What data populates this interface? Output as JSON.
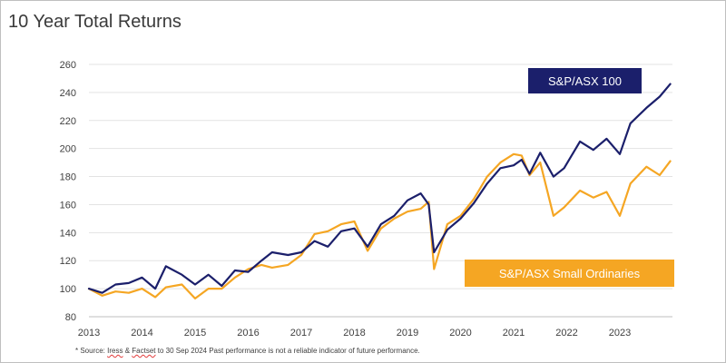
{
  "chart_data": {
    "type": "line",
    "title": "10 Year Total Returns",
    "xlabel": "",
    "ylabel": "",
    "x_ticks": [
      "2013",
      "2014",
      "2015",
      "2016",
      "2017",
      "2018",
      "2019",
      "2020",
      "2021",
      "2022",
      "2023"
    ],
    "y_ticks": [
      80,
      100,
      120,
      140,
      160,
      180,
      200,
      220,
      240,
      260
    ],
    "ylim": [
      80,
      260
    ],
    "xlim": [
      2013.0,
      2023.95
    ],
    "grid": "horizontal",
    "series": [
      {
        "name": "S&P/ASX 100",
        "color": "#1b1f6b",
        "x": [
          2013.0,
          2013.25,
          2013.5,
          2013.75,
          2014.0,
          2014.25,
          2014.45,
          2014.75,
          2015.0,
          2015.25,
          2015.5,
          2015.75,
          2016.0,
          2016.25,
          2016.45,
          2016.75,
          2017.0,
          2017.25,
          2017.5,
          2017.75,
          2018.0,
          2018.25,
          2018.5,
          2018.75,
          2019.0,
          2019.25,
          2019.4,
          2019.5,
          2019.75,
          2020.0,
          2020.25,
          2020.5,
          2020.75,
          2021.0,
          2021.15,
          2021.3,
          2021.5,
          2021.75,
          2021.95,
          2022.25,
          2022.5,
          2022.75,
          2023.0,
          2023.2,
          2023.5,
          2023.75,
          2023.95
        ],
        "values": [
          100,
          97,
          103,
          104,
          108,
          100,
          116,
          110,
          103,
          110,
          102,
          113,
          112,
          120,
          126,
          124,
          126,
          134,
          130,
          141,
          143,
          130,
          146,
          152,
          163,
          168,
          160,
          126,
          142,
          150,
          161,
          175,
          186,
          188,
          192,
          182,
          197,
          180,
          186,
          205,
          199,
          207,
          196,
          218,
          229,
          237,
          246
        ]
      },
      {
        "name": "S&P/ASX Small Ordinaries",
        "color": "#f5a623",
        "x": [
          2013.0,
          2013.25,
          2013.5,
          2013.75,
          2014.0,
          2014.25,
          2014.45,
          2014.75,
          2015.0,
          2015.25,
          2015.5,
          2015.75,
          2016.0,
          2016.25,
          2016.45,
          2016.75,
          2017.0,
          2017.25,
          2017.5,
          2017.75,
          2018.0,
          2018.25,
          2018.5,
          2018.75,
          2019.0,
          2019.25,
          2019.4,
          2019.5,
          2019.75,
          2020.0,
          2020.25,
          2020.5,
          2020.75,
          2021.0,
          2021.15,
          2021.3,
          2021.5,
          2021.75,
          2021.95,
          2022.25,
          2022.5,
          2022.75,
          2023.0,
          2023.2,
          2023.5,
          2023.75,
          2023.95
        ],
        "values": [
          100,
          95,
          98,
          97,
          100,
          94,
          101,
          103,
          93,
          100,
          100,
          108,
          114,
          117,
          115,
          117,
          124,
          139,
          141,
          146,
          148,
          127,
          143,
          150,
          155,
          157,
          162,
          114,
          146,
          152,
          164,
          180,
          190,
          196,
          195,
          181,
          190,
          152,
          158,
          170,
          165,
          169,
          152,
          175,
          187,
          181,
          191
        ]
      }
    ]
  },
  "legend": {
    "asx100_label": "S&P/ASX 100",
    "small_ords_label": "S&P/ASX Small Ordinaries",
    "asx100_bg": "#1b1f6b",
    "small_ords_bg": "#f5a623"
  },
  "footnote": {
    "prefix": "* Source: ",
    "iress": "Iress",
    "amp": " & ",
    "factset": "Factset",
    "rest": " to 30 Sep 2024    Past performance is not a reliable indicator of future performance."
  }
}
